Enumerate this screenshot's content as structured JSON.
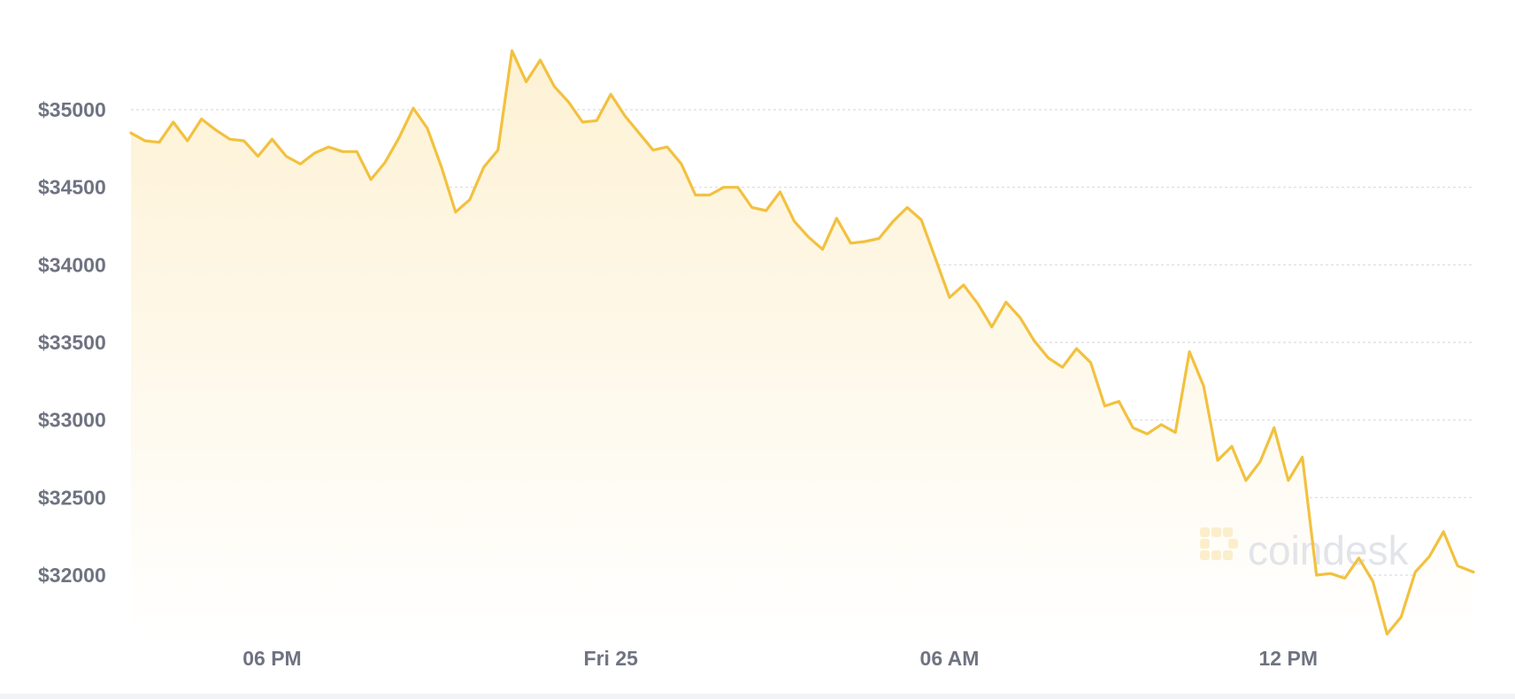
{
  "chart_data": {
    "type": "area",
    "title": "",
    "xlabel": "",
    "ylabel": "",
    "ylim": [
      31500,
      35500
    ],
    "y_ticks": [
      {
        "value": 32000,
        "label": "$32000"
      },
      {
        "value": 32500,
        "label": "$32500"
      },
      {
        "value": 33000,
        "label": "$33000"
      },
      {
        "value": 33500,
        "label": "$33500"
      },
      {
        "value": 34000,
        "label": "$34000"
      },
      {
        "value": 34500,
        "label": "$34500"
      },
      {
        "value": 35000,
        "label": "$35000"
      }
    ],
    "x_range": [
      0,
      23.78
    ],
    "x_unit": "hours from 3:30 PM, Thu 24",
    "x_ticks": [
      {
        "value": 2.5,
        "label": "06 PM"
      },
      {
        "value": 8.5,
        "label": "Fri 25"
      },
      {
        "value": 14.5,
        "label": "06 AM"
      },
      {
        "value": 20.5,
        "label": "12 PM"
      }
    ],
    "grid": true,
    "legend": "none",
    "series": [
      {
        "color": "#f2c13f",
        "fill_color": "#fdf3d8",
        "points": [
          [
            0.0,
            34850
          ],
          [
            0.25,
            34800
          ],
          [
            0.5,
            34790
          ],
          [
            0.75,
            34920
          ],
          [
            1.0,
            34800
          ],
          [
            1.25,
            34940
          ],
          [
            1.5,
            34870
          ],
          [
            1.75,
            34810
          ],
          [
            2.0,
            34800
          ],
          [
            2.25,
            34700
          ],
          [
            2.5,
            34810
          ],
          [
            2.75,
            34700
          ],
          [
            3.0,
            34650
          ],
          [
            3.25,
            34720
          ],
          [
            3.5,
            34760
          ],
          [
            3.75,
            34730
          ],
          [
            4.0,
            34730
          ],
          [
            4.25,
            34550
          ],
          [
            4.5,
            34660
          ],
          [
            4.75,
            34820
          ],
          [
            5.0,
            35010
          ],
          [
            5.25,
            34880
          ],
          [
            5.5,
            34630
          ],
          [
            5.75,
            34340
          ],
          [
            6.0,
            34420
          ],
          [
            6.25,
            34630
          ],
          [
            6.5,
            34740
          ],
          [
            6.75,
            35380
          ],
          [
            7.0,
            35180
          ],
          [
            7.25,
            35320
          ],
          [
            7.5,
            35150
          ],
          [
            7.75,
            35050
          ],
          [
            8.0,
            34920
          ],
          [
            8.25,
            34930
          ],
          [
            8.5,
            35100
          ],
          [
            8.75,
            34960
          ],
          [
            9.0,
            34850
          ],
          [
            9.25,
            34740
          ],
          [
            9.5,
            34760
          ],
          [
            9.75,
            34650
          ],
          [
            10.0,
            34450
          ],
          [
            10.25,
            34450
          ],
          [
            10.5,
            34500
          ],
          [
            10.75,
            34500
          ],
          [
            11.0,
            34370
          ],
          [
            11.25,
            34350
          ],
          [
            11.5,
            34470
          ],
          [
            11.75,
            34280
          ],
          [
            12.0,
            34180
          ],
          [
            12.25,
            34100
          ],
          [
            12.5,
            34300
          ],
          [
            12.75,
            34140
          ],
          [
            13.0,
            34150
          ],
          [
            13.25,
            34170
          ],
          [
            13.5,
            34280
          ],
          [
            13.75,
            34370
          ],
          [
            14.0,
            34290
          ],
          [
            14.25,
            34040
          ],
          [
            14.5,
            33790
          ],
          [
            14.75,
            33870
          ],
          [
            15.0,
            33750
          ],
          [
            15.25,
            33600
          ],
          [
            15.5,
            33760
          ],
          [
            15.75,
            33660
          ],
          [
            16.0,
            33510
          ],
          [
            16.25,
            33400
          ],
          [
            16.5,
            33340
          ],
          [
            16.75,
            33460
          ],
          [
            17.0,
            33370
          ],
          [
            17.25,
            33090
          ],
          [
            17.5,
            33120
          ],
          [
            17.75,
            32950
          ],
          [
            18.0,
            32910
          ],
          [
            18.25,
            32970
          ],
          [
            18.5,
            32920
          ],
          [
            18.75,
            33440
          ],
          [
            19.0,
            33220
          ],
          [
            19.25,
            32740
          ],
          [
            19.5,
            32830
          ],
          [
            19.75,
            32610
          ],
          [
            20.0,
            32730
          ],
          [
            20.25,
            32950
          ],
          [
            20.5,
            32610
          ],
          [
            20.75,
            32760
          ],
          [
            21.0,
            32000
          ],
          [
            21.25,
            32010
          ],
          [
            21.5,
            31980
          ],
          [
            21.75,
            32110
          ],
          [
            22.0,
            31960
          ],
          [
            22.25,
            31620
          ],
          [
            22.5,
            31730
          ],
          [
            22.75,
            32020
          ],
          [
            23.0,
            32120
          ],
          [
            23.25,
            32280
          ],
          [
            23.5,
            32060
          ],
          [
            23.78,
            32020
          ]
        ]
      }
    ]
  },
  "watermark": {
    "text": "coindesk",
    "icon": "coindesk-logo-icon"
  }
}
